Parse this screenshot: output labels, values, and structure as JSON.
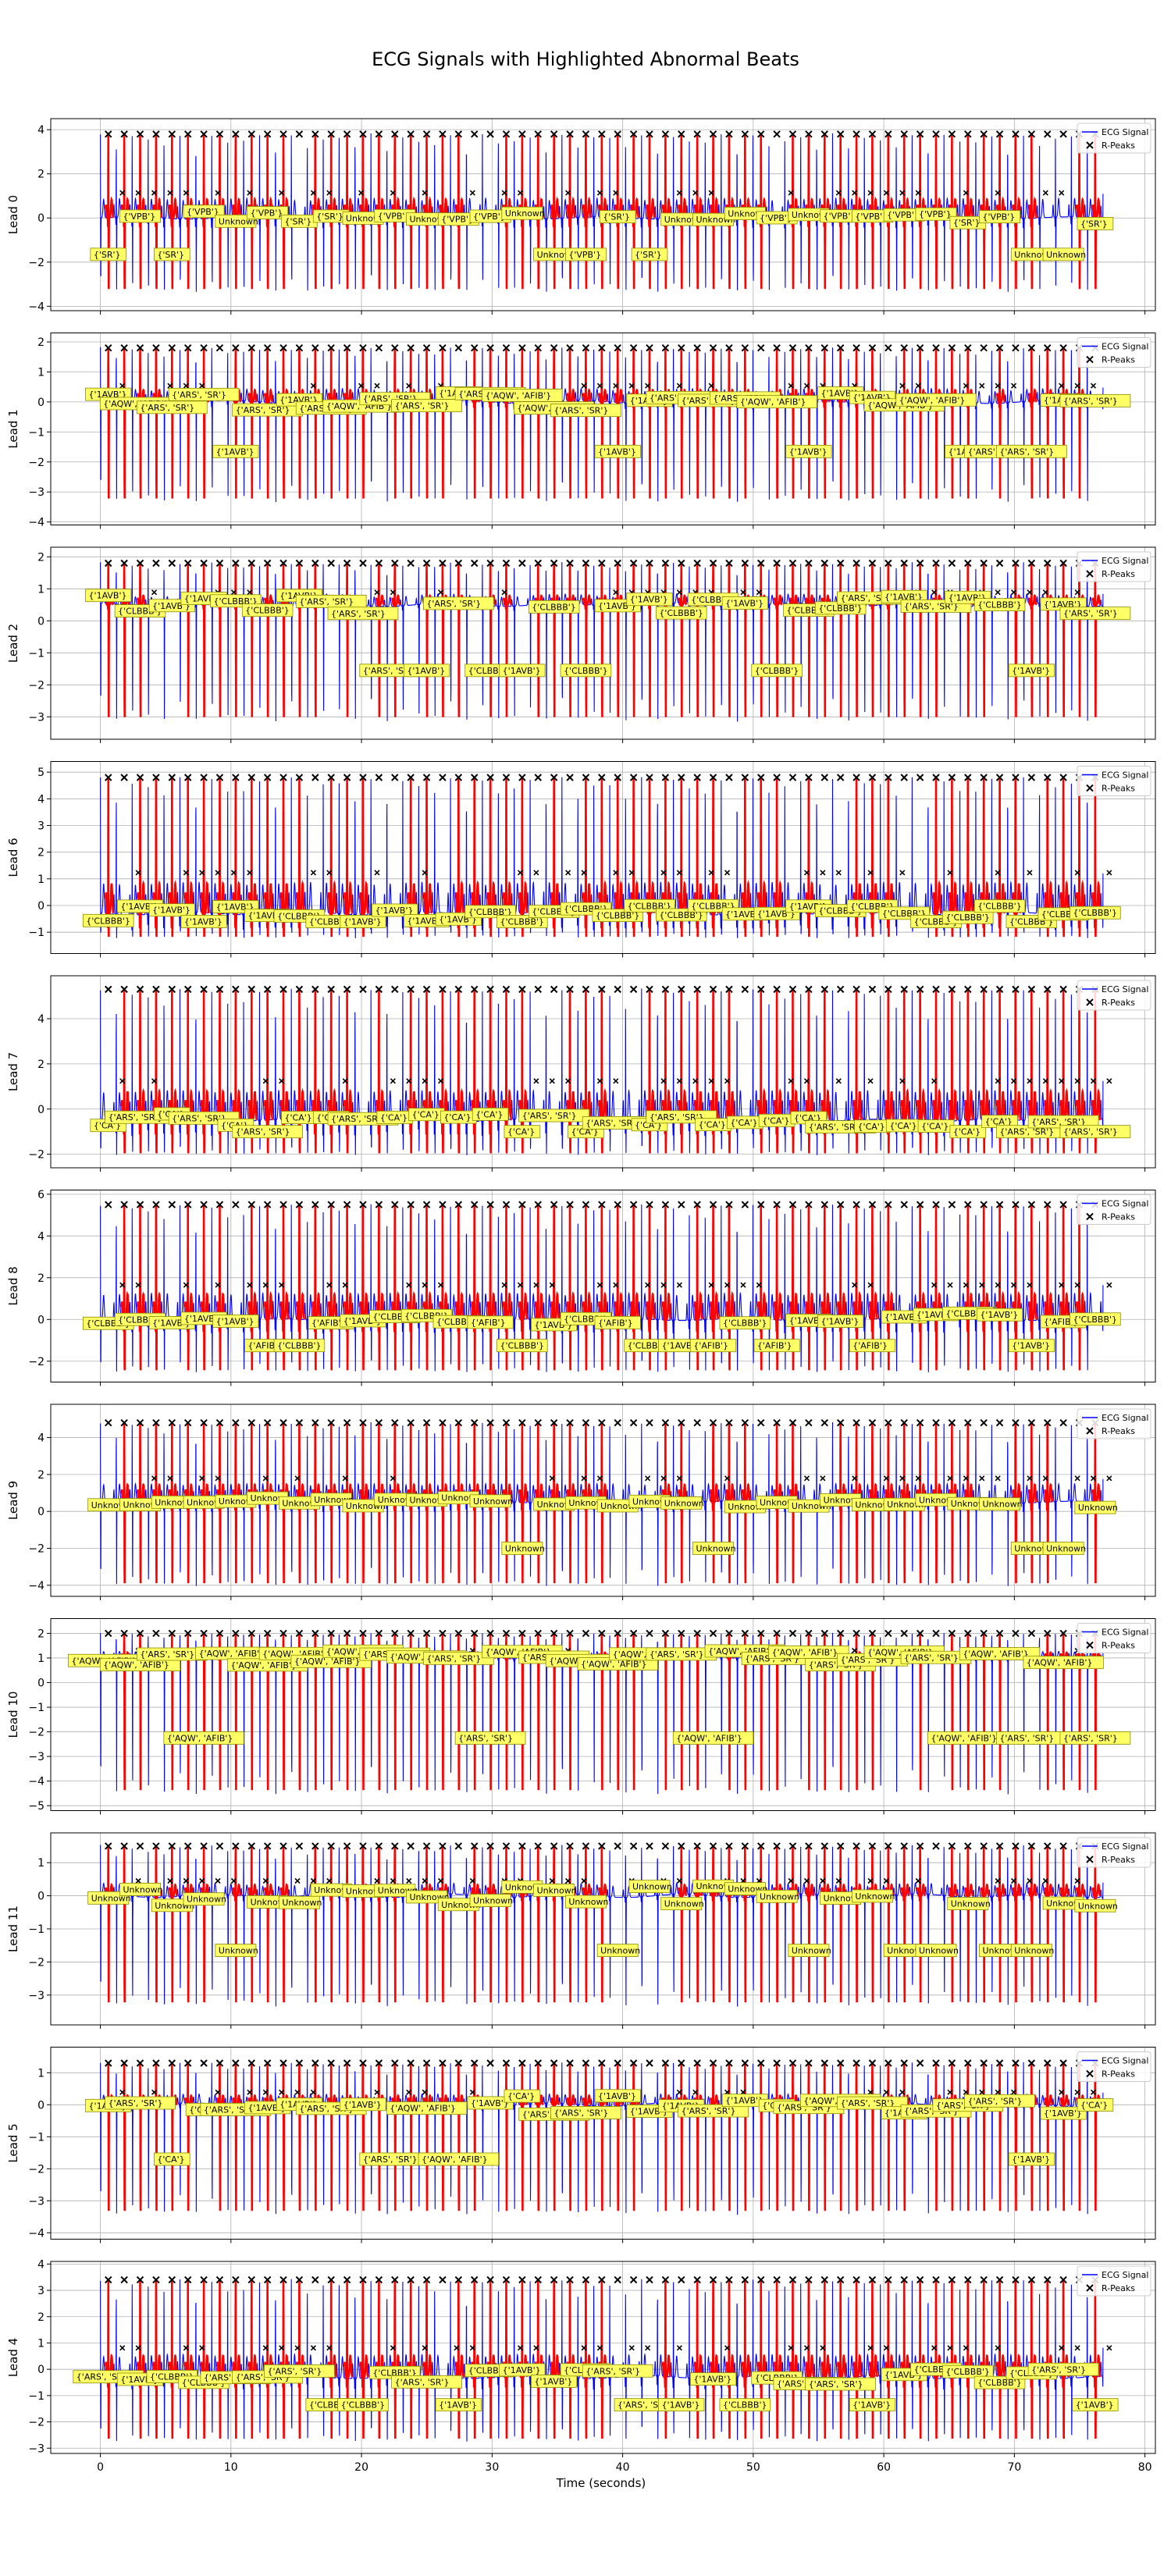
{
  "title": "ECG Signals with Highlighted Abnormal Beats",
  "chart_data": {
    "type": "line",
    "title": "ECG Signals with Highlighted Abnormal Beats",
    "xlabel": "Time (seconds)",
    "xlim": [
      -3.8,
      80.8
    ],
    "xticks": [
      0,
      10,
      20,
      30,
      40,
      50,
      60,
      70,
      80
    ],
    "duration_seconds": 76.8,
    "grid": true,
    "legend_position": "upper-right",
    "legend_entries": [
      "ECG Signal",
      "R-Peaks"
    ],
    "colors": {
      "signal": "#0000ff",
      "abnormal": "#ff0000",
      "rpeak_marker": "#000000",
      "annotation_fill": "#ffff66",
      "annotation_edge": "#8a8a00",
      "grid": "#b0b0b0"
    },
    "panels": [
      {
        "ylabel": "Lead 0",
        "ylim": [
          -4.2,
          4.5
        ],
        "yticks": [
          -4,
          -2,
          0,
          2,
          4
        ],
        "r_amp": 3.8,
        "s_amp": -3.3,
        "baseline": 0.0,
        "label_set": [
          "{'SR'}",
          "{'VPB'}",
          "Unknown"
        ]
      },
      {
        "ylabel": "Lead 1",
        "ylim": [
          -4.1,
          2.3
        ],
        "yticks": [
          -4,
          -3,
          -2,
          -1,
          0,
          1,
          2
        ],
        "r_amp": 1.8,
        "s_amp": -3.3,
        "baseline": 0.0,
        "label_set": [
          "{'1AVB'}",
          "{'ARS', 'SR'}",
          "{'AQW', 'AFIB'}"
        ]
      },
      {
        "ylabel": "Lead 2",
        "ylim": [
          -3.7,
          2.3
        ],
        "yticks": [
          -3,
          -2,
          -1,
          0,
          1,
          2
        ],
        "r_amp": 1.8,
        "s_amp": -3.1,
        "baseline": 0.5,
        "label_set": [
          "{'1AVB'}",
          "{'CLBBB'}",
          "{'ARS', 'SR'}"
        ]
      },
      {
        "ylabel": "Lead 6",
        "ylim": [
          -1.8,
          5.4
        ],
        "yticks": [
          -1,
          0,
          1,
          2,
          3,
          4,
          5
        ],
        "r_amp": 4.8,
        "s_amp": -1.2,
        "baseline": -0.3,
        "label_set": [
          "{'CLBBB'}",
          "{'1AVB'}"
        ]
      },
      {
        "ylabel": "Lead 7",
        "ylim": [
          -2.6,
          5.9
        ],
        "yticks": [
          -2,
          0,
          2,
          4
        ],
        "r_amp": 5.3,
        "s_amp": -2.0,
        "baseline": -0.5,
        "label_set": [
          "{'CA'}",
          "{'ARS', 'SR'}"
        ]
      },
      {
        "ylabel": "Lead 8",
        "ylim": [
          -3.0,
          6.2
        ],
        "yticks": [
          -2,
          0,
          2,
          4,
          6
        ],
        "r_amp": 5.5,
        "s_amp": -2.5,
        "baseline": 0.0,
        "label_set": [
          "{'CLBBB'}",
          "{'1AVB'}",
          "{'AFIB'}"
        ]
      },
      {
        "ylabel": "Lead 9",
        "ylim": [
          -4.6,
          5.8
        ],
        "yticks": [
          -4,
          -2,
          0,
          2,
          4
        ],
        "r_amp": 4.8,
        "s_amp": -4.0,
        "baseline": 0.5,
        "label_set": [
          "Unknown"
        ]
      },
      {
        "ylabel": "Lead 10",
        "ylim": [
          -5.2,
          2.6
        ],
        "yticks": [
          -5,
          -4,
          -3,
          -2,
          -1,
          0,
          1,
          2
        ],
        "r_amp": 2.0,
        "s_amp": -4.5,
        "baseline": 1.0,
        "label_set": [
          "{'AQW', 'AFIB'}",
          "{'ARS', 'SR'}"
        ]
      },
      {
        "ylabel": "Lead 11",
        "ylim": [
          -3.9,
          1.9
        ],
        "yticks": [
          -3,
          -2,
          -1,
          0,
          1
        ],
        "r_amp": 1.5,
        "s_amp": -3.3,
        "baseline": 0.0,
        "label_set": [
          "Unknown"
        ]
      },
      {
        "ylabel": "Lead 5",
        "ylim": [
          -4.2,
          1.8
        ],
        "yticks": [
          -4,
          -3,
          -2,
          -1,
          0,
          1
        ],
        "r_amp": 1.3,
        "s_amp": -3.4,
        "baseline": 0.0,
        "label_set": [
          "{'ARS', 'SR'}",
          "{'1AVB'}",
          "{'CA'}",
          "{'AQW', 'AFIB'}"
        ]
      },
      {
        "ylabel": "Lead 4",
        "ylim": [
          -3.2,
          4.1
        ],
        "yticks": [
          -3,
          -2,
          -1,
          0,
          1,
          2,
          3,
          4
        ],
        "r_amp": 3.4,
        "s_amp": -2.7,
        "baseline": -0.3,
        "label_set": [
          "{'CLBBB'}",
          "{'ARS', 'SR'}",
          "{'1AVB'}"
        ]
      }
    ]
  }
}
